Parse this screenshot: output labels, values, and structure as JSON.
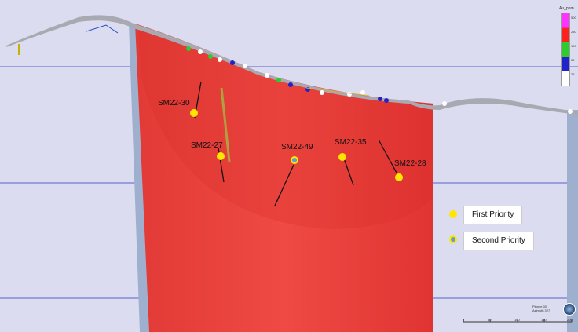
{
  "holes": [
    {
      "label": "SM22-30",
      "priority": "first"
    },
    {
      "label": "SM22-27",
      "priority": "first"
    },
    {
      "label": "SM22-49",
      "priority": "second"
    },
    {
      "label": "SM22-35",
      "priority": "first"
    },
    {
      "label": "SM22-28",
      "priority": "first"
    }
  ],
  "legend": {
    "first_priority": "First Priority",
    "second_priority": "Second Priority"
  },
  "color_scale": {
    "title": "Au_ppm",
    "labels": [
      "500",
      "250",
      "100",
      "50",
      "25"
    ],
    "colors": [
      "#ff33ff",
      "#ff2020",
      "#2ecc2e",
      "#2222cc",
      "#ffffff"
    ]
  },
  "orientation": {
    "plunge": "Plunge 00",
    "azimuth": "Azimuth 327"
  },
  "scale_bar": [
    "0",
    "50",
    "100",
    "150",
    "200"
  ],
  "colors": {
    "background": "#dcdcf0",
    "body_red": "#e8302e",
    "first_priority": "#ffe600",
    "second_priority": "#5aa0d8"
  }
}
